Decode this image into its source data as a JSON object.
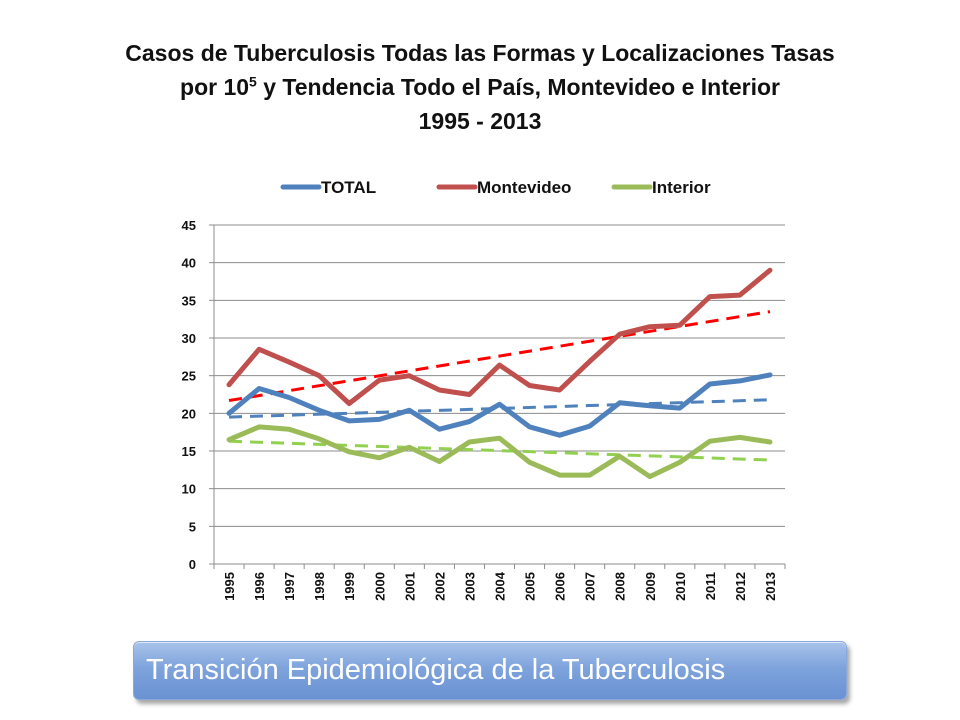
{
  "title": {
    "line1": "Casos de Tuberculosis Todas las Formas y Localizaciones Tasas",
    "line2_pre": "por 10",
    "line2_sup": "5",
    "line2_post": " y Tendencia Todo el País, Montevideo e Interior",
    "line3": "1995 - 2013"
  },
  "banner": {
    "text": "Transición Epidemiológica de la Tuberculosis"
  },
  "colors": {
    "total": "#4f81bd",
    "montevideo": "#c0504d",
    "interior": "#9bbb59",
    "trend_total": "#4f81bd",
    "trend_montevideo": "#ff0000",
    "trend_interior": "#92d050"
  },
  "chart_data": {
    "type": "line",
    "title": "Casos de Tuberculosis Todas las Formas y Localizaciones Tasas por 10^5 y Tendencia Todo el País, Montevideo e Interior 1995 - 2013",
    "xlabel": "",
    "ylabel": "",
    "ylim": [
      0,
      45
    ],
    "yticks": [
      0,
      5,
      10,
      15,
      20,
      25,
      30,
      35,
      40,
      45
    ],
    "grid": true,
    "legend": "top",
    "categories": [
      "1995",
      "1996",
      "1997",
      "1998",
      "1999",
      "2000",
      "2001",
      "2002",
      "2003",
      "2004",
      "2005",
      "2006",
      "2007",
      "2008",
      "2009",
      "2010",
      "2011",
      "2012",
      "2013"
    ],
    "series": [
      {
        "name": "TOTAL",
        "color_key": "total",
        "values": [
          20.0,
          23.3,
          22.1,
          20.4,
          19.0,
          19.2,
          20.4,
          17.9,
          18.9,
          21.2,
          18.2,
          17.1,
          18.3,
          21.4,
          21.0,
          20.7,
          23.9,
          24.3,
          25.1
        ]
      },
      {
        "name": "Montevideo",
        "color_key": "montevideo",
        "values": [
          23.8,
          28.5,
          26.8,
          25.0,
          21.3,
          24.4,
          25.0,
          23.1,
          22.5,
          26.4,
          23.7,
          23.1,
          26.9,
          30.5,
          31.5,
          31.7,
          35.5,
          35.7,
          39.0
        ]
      },
      {
        "name": "Interior",
        "color_key": "interior",
        "values": [
          16.5,
          18.2,
          17.9,
          16.6,
          14.9,
          14.1,
          15.5,
          13.6,
          16.2,
          16.7,
          13.5,
          11.8,
          11.8,
          14.3,
          11.6,
          13.5,
          16.3,
          16.8,
          16.2
        ]
      }
    ],
    "trendlines": [
      {
        "of": "TOTAL",
        "color_key": "trend_total",
        "style": "dashed",
        "start": 19.5,
        "end": 21.8
      },
      {
        "of": "Montevideo",
        "color_key": "trend_montevideo",
        "style": "dashed",
        "start": 21.7,
        "end": 33.5
      },
      {
        "of": "Interior",
        "color_key": "trend_interior",
        "style": "dashed",
        "start": 16.3,
        "end": 13.8
      }
    ]
  }
}
